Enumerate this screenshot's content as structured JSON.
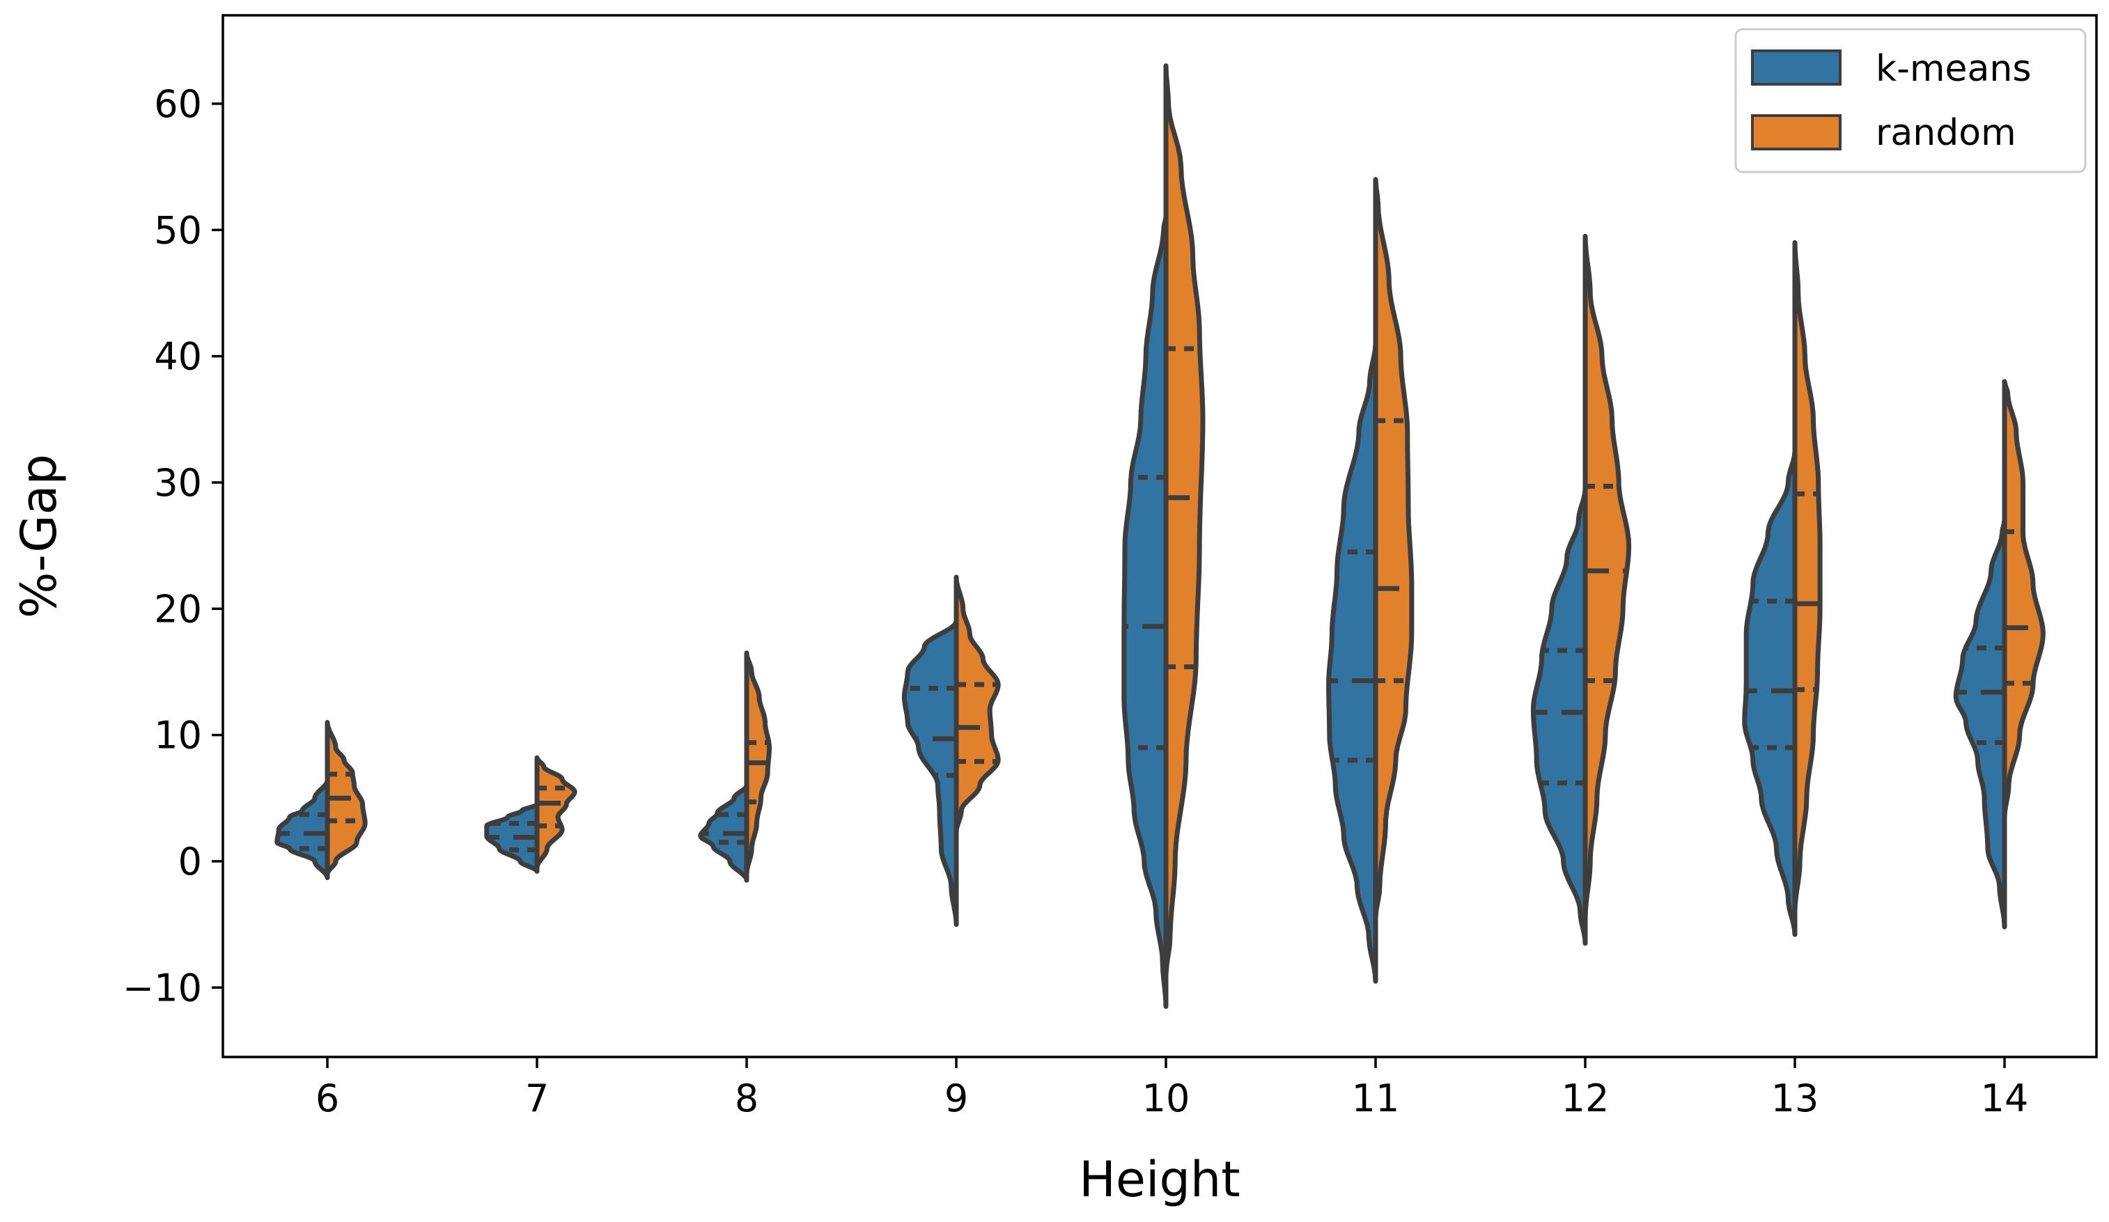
{
  "chart_data": {
    "type": "violin",
    "split": true,
    "inner": "quartile",
    "xlabel": "Height",
    "ylabel": "%-Gap",
    "ylim": [
      -15.5,
      67
    ],
    "yticks": [
      -10,
      0,
      10,
      20,
      30,
      40,
      50,
      60
    ],
    "ytick_labels": [
      "−10",
      "0",
      "10",
      "20",
      "30",
      "40",
      "50",
      "60"
    ],
    "categories": [
      "6",
      "7",
      "8",
      "9",
      "10",
      "11",
      "12",
      "13",
      "14"
    ],
    "legend_position": "top-right",
    "series": [
      {
        "name": "k-means",
        "color": "#3274a1",
        "violins": [
          {
            "ymin": -1.3,
            "ymax": 6.4,
            "q1": 1.0,
            "median": 2.2,
            "q3": 3.7,
            "profile": [
              [
                -1.3,
                0
              ],
              [
                0,
                0.15
              ],
              [
                1,
                0.45
              ],
              [
                1.5,
                0.6
              ],
              [
                2.5,
                0.58
              ],
              [
                3.5,
                0.45
              ],
              [
                4,
                0.3
              ],
              [
                5,
                0.15
              ],
              [
                6.4,
                0
              ]
            ]
          },
          {
            "ymin": -0.8,
            "ymax": 4.5,
            "q1": 0.9,
            "median": 1.9,
            "q3": 3.0,
            "profile": [
              [
                -0.8,
                0
              ],
              [
                0,
                0.2
              ],
              [
                1,
                0.45
              ],
              [
                2,
                0.6
              ],
              [
                2.8,
                0.6
              ],
              [
                3.5,
                0.35
              ],
              [
                4,
                0.18
              ],
              [
                4.5,
                0
              ]
            ]
          },
          {
            "ymin": -1.5,
            "ymax": 6.0,
            "q1": 1.5,
            "median": 2.2,
            "q3": 3.7,
            "profile": [
              [
                -1.5,
                0
              ],
              [
                0,
                0.2
              ],
              [
                1.2,
                0.4
              ],
              [
                2,
                0.55
              ],
              [
                3,
                0.45
              ],
              [
                3.8,
                0.35
              ],
              [
                5,
                0.15
              ],
              [
                6,
                0
              ]
            ]
          },
          {
            "ymin": -5.0,
            "ymax": 19.0,
            "q1": 6.8,
            "median": 9.7,
            "q3": 13.7,
            "profile": [
              [
                -5,
                0
              ],
              [
                -2,
                0.06
              ],
              [
                1,
                0.18
              ],
              [
                4,
                0.2
              ],
              [
                6,
                0.22
              ],
              [
                9,
                0.45
              ],
              [
                11,
                0.58
              ],
              [
                13,
                0.62
              ],
              [
                15,
                0.58
              ],
              [
                17,
                0.38
              ],
              [
                19,
                0
              ]
            ]
          },
          {
            "ymin": -11.5,
            "ymax": 51.0,
            "q1": 9.0,
            "median": 18.6,
            "q3": 30.4,
            "profile": [
              [
                -11.5,
                0
              ],
              [
                -8,
                0.04
              ],
              [
                -4,
                0.12
              ],
              [
                0,
                0.26
              ],
              [
                4,
                0.38
              ],
              [
                8,
                0.45
              ],
              [
                13,
                0.5
              ],
              [
                18,
                0.5
              ],
              [
                25,
                0.49
              ],
              [
                30,
                0.42
              ],
              [
                35,
                0.3
              ],
              [
                40,
                0.24
              ],
              [
                45,
                0.16
              ],
              [
                50,
                0.03
              ],
              [
                51,
                0
              ]
            ]
          },
          {
            "ymin": -9.5,
            "ymax": 41.0,
            "q1": 8.0,
            "median": 14.3,
            "q3": 24.5,
            "profile": [
              [
                -9.5,
                0
              ],
              [
                -6,
                0.08
              ],
              [
                -2,
                0.22
              ],
              [
                2,
                0.38
              ],
              [
                6,
                0.48
              ],
              [
                10,
                0.55
              ],
              [
                14,
                0.56
              ],
              [
                18,
                0.52
              ],
              [
                23,
                0.46
              ],
              [
                28,
                0.38
              ],
              [
                34,
                0.2
              ],
              [
                38,
                0.07
              ],
              [
                41,
                0
              ]
            ]
          },
          {
            "ymin": -6.5,
            "ymax": 29.5,
            "q1": 6.2,
            "median": 11.8,
            "q3": 16.7,
            "profile": [
              [
                -6.5,
                0
              ],
              [
                -4,
                0.06
              ],
              [
                0,
                0.26
              ],
              [
                4,
                0.48
              ],
              [
                8,
                0.58
              ],
              [
                12,
                0.62
              ],
              [
                16,
                0.52
              ],
              [
                20,
                0.4
              ],
              [
                24,
                0.22
              ],
              [
                27,
                0.08
              ],
              [
                29.5,
                0
              ]
            ]
          },
          {
            "ymin": -5.8,
            "ymax": 32.5,
            "q1": 9.0,
            "median": 13.5,
            "q3": 20.6,
            "profile": [
              [
                -5.8,
                0
              ],
              [
                -3,
                0.08
              ],
              [
                1,
                0.22
              ],
              [
                5,
                0.4
              ],
              [
                8,
                0.5
              ],
              [
                11,
                0.6
              ],
              [
                14,
                0.58
              ],
              [
                18,
                0.58
              ],
              [
                22,
                0.5
              ],
              [
                26,
                0.32
              ],
              [
                30,
                0.08
              ],
              [
                32.5,
                0
              ]
            ]
          },
          {
            "ymin": -5.2,
            "ymax": 27.0,
            "q1": 9.4,
            "median": 13.4,
            "q3": 16.9,
            "profile": [
              [
                -5.2,
                0
              ],
              [
                -2,
                0.06
              ],
              [
                1,
                0.2
              ],
              [
                5,
                0.24
              ],
              [
                8,
                0.32
              ],
              [
                11,
                0.46
              ],
              [
                13,
                0.58
              ],
              [
                16,
                0.5
              ],
              [
                19,
                0.34
              ],
              [
                23,
                0.16
              ],
              [
                26,
                0.03
              ],
              [
                27,
                0
              ]
            ]
          }
        ]
      },
      {
        "name": "random",
        "color": "#e1812c",
        "violins": [
          {
            "ymin": -1.0,
            "ymax": 11.0,
            "q1": 3.2,
            "median": 5.0,
            "q3": 6.9,
            "profile": [
              [
                -1,
                0
              ],
              [
                0,
                0.1
              ],
              [
                1.5,
                0.35
              ],
              [
                3,
                0.45
              ],
              [
                4.5,
                0.42
              ],
              [
                6,
                0.32
              ],
              [
                7,
                0.3
              ],
              [
                8,
                0.2
              ],
              [
                9,
                0.1
              ],
              [
                11,
                0
              ]
            ]
          },
          {
            "ymin": -0.5,
            "ymax": 8.2,
            "q1": 2.8,
            "median": 4.6,
            "q3": 5.8,
            "profile": [
              [
                -0.5,
                0
              ],
              [
                1,
                0.12
              ],
              [
                2.5,
                0.3
              ],
              [
                3.5,
                0.25
              ],
              [
                4.5,
                0.35
              ],
              [
                5.5,
                0.45
              ],
              [
                6.5,
                0.3
              ],
              [
                7.5,
                0.08
              ],
              [
                8.2,
                0
              ]
            ]
          },
          {
            "ymin": -1.0,
            "ymax": 16.5,
            "q1": 4.7,
            "median": 7.8,
            "q3": 9.4,
            "profile": [
              [
                -1,
                0
              ],
              [
                1,
                0.06
              ],
              [
                3,
                0.12
              ],
              [
                5,
                0.17
              ],
              [
                7,
                0.25
              ],
              [
                9,
                0.27
              ],
              [
                11,
                0.22
              ],
              [
                13,
                0.15
              ],
              [
                15,
                0.06
              ],
              [
                16.5,
                0
              ]
            ]
          },
          {
            "ymin": 2.3,
            "ymax": 22.5,
            "q1": 7.9,
            "median": 10.6,
            "q3": 14.0,
            "profile": [
              [
                2.3,
                0
              ],
              [
                4,
                0.06
              ],
              [
                6,
                0.28
              ],
              [
                8,
                0.5
              ],
              [
                10,
                0.42
              ],
              [
                12,
                0.4
              ],
              [
                14,
                0.5
              ],
              [
                16,
                0.32
              ],
              [
                18,
                0.16
              ],
              [
                20,
                0.08
              ],
              [
                22.5,
                0
              ]
            ]
          },
          {
            "ymin": -9.0,
            "ymax": 63.0,
            "q1": 15.4,
            "median": 28.8,
            "q3": 40.6,
            "profile": [
              [
                -9,
                0
              ],
              [
                -6,
                0.05
              ],
              [
                0,
                0.11
              ],
              [
                8,
                0.24
              ],
              [
                16,
                0.36
              ],
              [
                25,
                0.4
              ],
              [
                35,
                0.44
              ],
              [
                42,
                0.4
              ],
              [
                48,
                0.32
              ],
              [
                55,
                0.18
              ],
              [
                60,
                0.03
              ],
              [
                63,
                0
              ]
            ]
          },
          {
            "ymin": -4.5,
            "ymax": 54.0,
            "q1": 14.3,
            "median": 21.6,
            "q3": 34.9,
            "profile": [
              [
                -4.5,
                0
              ],
              [
                -2,
                0.05
              ],
              [
                3,
                0.12
              ],
              [
                8,
                0.24
              ],
              [
                12,
                0.36
              ],
              [
                18,
                0.43
              ],
              [
                22,
                0.43
              ],
              [
                28,
                0.39
              ],
              [
                34,
                0.38
              ],
              [
                40,
                0.3
              ],
              [
                46,
                0.16
              ],
              [
                52,
                0.03
              ],
              [
                54,
                0
              ]
            ]
          },
          {
            "ymin": -4.5,
            "ymax": 49.5,
            "q1": 14.3,
            "median": 23.0,
            "q3": 29.7,
            "profile": [
              [
                -4.5,
                0
              ],
              [
                0,
                0.06
              ],
              [
                5,
                0.14
              ],
              [
                10,
                0.24
              ],
              [
                15,
                0.36
              ],
              [
                20,
                0.45
              ],
              [
                25,
                0.52
              ],
              [
                30,
                0.4
              ],
              [
                35,
                0.32
              ],
              [
                40,
                0.2
              ],
              [
                45,
                0.06
              ],
              [
                49.5,
                0
              ]
            ]
          },
          {
            "ymin": -4.0,
            "ymax": 49.0,
            "q1": 13.6,
            "median": 20.4,
            "q3": 29.1,
            "profile": [
              [
                -4,
                0
              ],
              [
                0,
                0.06
              ],
              [
                5,
                0.14
              ],
              [
                10,
                0.22
              ],
              [
                15,
                0.27
              ],
              [
                20,
                0.3
              ],
              [
                25,
                0.3
              ],
              [
                30,
                0.28
              ],
              [
                35,
                0.22
              ],
              [
                40,
                0.12
              ],
              [
                45,
                0.04
              ],
              [
                49,
                0
              ]
            ]
          },
          {
            "ymin": 3.5,
            "ymax": 38.0,
            "q1": 14.1,
            "median": 18.5,
            "q3": 26.1,
            "profile": [
              [
                3.5,
                0
              ],
              [
                6,
                0.05
              ],
              [
                10,
                0.18
              ],
              [
                14,
                0.34
              ],
              [
                18,
                0.46
              ],
              [
                22,
                0.34
              ],
              [
                26,
                0.22
              ],
              [
                30,
                0.22
              ],
              [
                34,
                0.14
              ],
              [
                37,
                0.04
              ],
              [
                38,
                0
              ]
            ]
          }
        ]
      }
    ]
  }
}
